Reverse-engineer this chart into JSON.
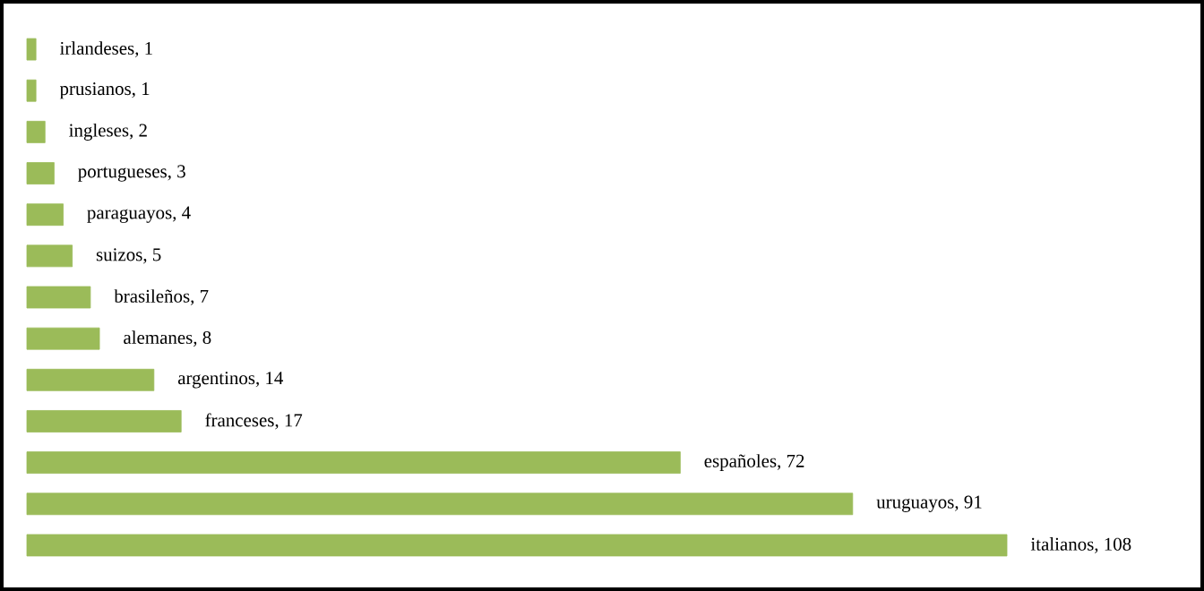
{
  "chart_data": {
    "type": "bar",
    "orientation": "horizontal",
    "color": "#9bbb59",
    "categories": [
      null,
      null,
      null,
      null,
      null,
      null,
      null,
      null,
      null,
      null,
      null,
      null,
      null
    ],
    "values": [
      1,
      1,
      2,
      3,
      4,
      5,
      7,
      8,
      14,
      17,
      72,
      91,
      108
    ],
    "value_labels": [
      "irlandeses, 1",
      "prusianos, 1",
      "ingleses, 2",
      "portugueses, 3",
      "paraguayos, 4",
      "suizos, 5",
      "brasileños, 7",
      "alemanes, 8",
      "argentinos, 14",
      "franceses, 17",
      "españoles, 72",
      "uruguayos, 91",
      "italianos, 108"
    ]
  }
}
